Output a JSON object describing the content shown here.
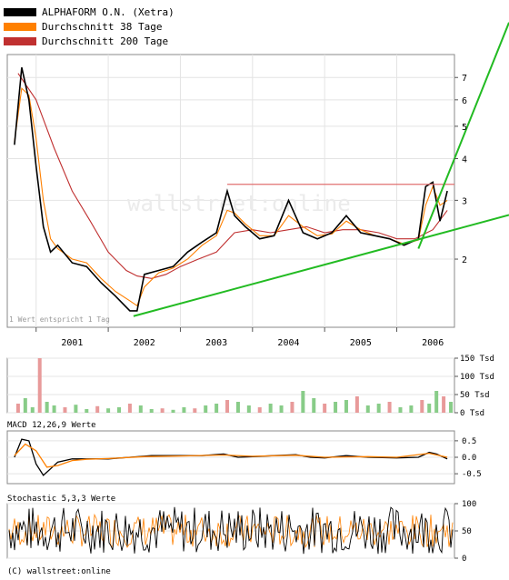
{
  "chart_data": [
    {
      "type": "line",
      "panel": "price",
      "legend": [
        {
          "name": "ALPHAFORM O.N. (Xetra)",
          "color": "#000000"
        },
        {
          "name": "Durchschnitt 38 Tage",
          "color": "#ff8000"
        },
        {
          "name": "Durchschnitt 200 Tage",
          "color": "#c03030"
        }
      ],
      "legend_placement": "top-left",
      "x_ticks": [
        "2001",
        "2002",
        "2003",
        "2004",
        "2005",
        "2006"
      ],
      "y_ticks": [
        2,
        3,
        4,
        5,
        6,
        7
      ],
      "y_scale": "log",
      "ylim": [
        1.25,
        8.2
      ],
      "grid": true,
      "note": "1 Wert entspricht 1 Tag",
      "watermark": "wallstreet:online",
      "series": [
        {
          "name": "ALPHAFORM O.N. (Xetra)",
          "x": [
            2000.7,
            2000.8,
            2000.9,
            2001.0,
            2001.1,
            2001.2,
            2001.3,
            2001.5,
            2001.7,
            2001.9,
            2002.1,
            2002.3,
            2002.4,
            2002.5,
            2002.7,
            2002.9,
            2003.1,
            2003.3,
            2003.5,
            2003.65,
            2003.75,
            2003.9,
            2004.1,
            2004.3,
            2004.5,
            2004.7,
            2004.9,
            2005.1,
            2005.3,
            2005.5,
            2005.7,
            2005.9,
            2006.1,
            2006.3,
            2006.4,
            2006.5,
            2006.6,
            2006.7
          ],
          "values": [
            4.4,
            7.5,
            6.0,
            3.8,
            2.5,
            2.1,
            2.2,
            1.95,
            1.9,
            1.7,
            1.55,
            1.4,
            1.4,
            1.8,
            1.85,
            1.9,
            2.1,
            2.25,
            2.4,
            3.2,
            2.7,
            2.5,
            2.3,
            2.35,
            3.0,
            2.4,
            2.3,
            2.4,
            2.7,
            2.4,
            2.35,
            2.3,
            2.2,
            2.3,
            3.3,
            3.4,
            2.6,
            3.2
          ]
        },
        {
          "name": "Durchschnitt 38 Tage",
          "x": [
            2000.7,
            2000.8,
            2000.9,
            2001.0,
            2001.1,
            2001.2,
            2001.3,
            2001.5,
            2001.7,
            2001.9,
            2002.1,
            2002.3,
            2002.4,
            2002.5,
            2002.7,
            2002.9,
            2003.1,
            2003.3,
            2003.5,
            2003.65,
            2003.75,
            2003.9,
            2004.1,
            2004.3,
            2004.5,
            2004.7,
            2004.9,
            2005.1,
            2005.3,
            2005.5,
            2005.7,
            2005.9,
            2006.1,
            2006.3,
            2006.4,
            2006.5,
            2006.6,
            2006.7
          ],
          "values": [
            4.5,
            6.5,
            6.2,
            4.6,
            3.0,
            2.3,
            2.15,
            2.0,
            1.95,
            1.75,
            1.6,
            1.5,
            1.45,
            1.65,
            1.82,
            1.88,
            2.0,
            2.2,
            2.35,
            2.8,
            2.75,
            2.55,
            2.35,
            2.35,
            2.7,
            2.5,
            2.35,
            2.38,
            2.6,
            2.45,
            2.35,
            2.3,
            2.22,
            2.28,
            2.9,
            3.3,
            2.9,
            3.0
          ]
        },
        {
          "name": "Durchschnitt 200 Tage",
          "x": [
            2000.75,
            2001.0,
            2001.25,
            2001.5,
            2001.75,
            2002.0,
            2002.25,
            2002.4,
            2002.6,
            2002.8,
            2003.0,
            2003.25,
            2003.5,
            2003.75,
            2004.0,
            2004.25,
            2004.5,
            2004.75,
            2005.0,
            2005.25,
            2005.5,
            2005.75,
            2006.0,
            2006.25,
            2006.5,
            2006.7
          ],
          "values": [
            7.2,
            6.0,
            4.3,
            3.2,
            2.6,
            2.1,
            1.85,
            1.78,
            1.75,
            1.8,
            1.9,
            2.0,
            2.1,
            2.4,
            2.45,
            2.4,
            2.45,
            2.5,
            2.4,
            2.45,
            2.45,
            2.4,
            2.3,
            2.3,
            2.45,
            2.8
          ]
        }
      ],
      "annotations": [
        {
          "kind": "horizontal-line",
          "y": 3.35,
          "x_from": 2003.65,
          "x_to": 2006.8,
          "color": "#e07070"
        },
        {
          "kind": "trendline",
          "from": {
            "x": 2002.35,
            "y": 1.35
          },
          "to": {
            "x": 2006.8,
            "y": 2.45
          },
          "color": "#22bb22"
        },
        {
          "kind": "trendline",
          "from": {
            "x": 2006.3,
            "y": 2.15
          },
          "to": {
            "x": 2006.8,
            "y": 4.0
          },
          "color": "#22bb22"
        }
      ]
    },
    {
      "type": "bar",
      "panel": "volume",
      "y_ticks": [
        0,
        50,
        100,
        150
      ],
      "y_unit": "Tsd",
      "ylim": [
        0,
        150
      ],
      "x": [
        2000.75,
        2000.85,
        2000.95,
        2001.05,
        2001.15,
        2001.25,
        2001.4,
        2001.55,
        2001.7,
        2001.85,
        2002.0,
        2002.15,
        2002.3,
        2002.45,
        2002.6,
        2002.75,
        2002.9,
        2003.05,
        2003.2,
        2003.35,
        2003.5,
        2003.65,
        2003.8,
        2003.95,
        2004.1,
        2004.25,
        2004.4,
        2004.55,
        2004.7,
        2004.85,
        2005.0,
        2005.15,
        2005.3,
        2005.45,
        2005.6,
        2005.75,
        2005.9,
        2006.05,
        2006.2,
        2006.35,
        2006.45,
        2006.55,
        2006.65,
        2006.75
      ],
      "values": [
        25,
        40,
        15,
        150,
        30,
        20,
        15,
        22,
        10,
        18,
        12,
        15,
        25,
        20,
        10,
        12,
        8,
        15,
        12,
        20,
        25,
        35,
        30,
        20,
        15,
        25,
        20,
        30,
        60,
        40,
        25,
        30,
        35,
        45,
        20,
        25,
        30,
        15,
        20,
        35,
        25,
        60,
        45,
        30
      ]
    },
    {
      "type": "line",
      "panel": "macd",
      "title": "MACD 12,26,9 Werte",
      "y_ticks": [
        0.5,
        0.0,
        -0.5
      ],
      "ylim": [
        -0.8,
        0.8
      ],
      "series": [
        {
          "name": "MACD",
          "x": [
            2000.7,
            2000.8,
            2000.9,
            2001.0,
            2001.1,
            2001.2,
            2001.3,
            2001.5,
            2001.7,
            2002.0,
            2002.3,
            2002.6,
            2003.0,
            2003.3,
            2003.6,
            2003.8,
            2004.0,
            2004.3,
            2004.6,
            2004.8,
            2005.0,
            2005.3,
            2005.6,
            2006.0,
            2006.3,
            2006.45,
            2006.55,
            2006.7
          ],
          "values": [
            0.0,
            0.55,
            0.5,
            -0.2,
            -0.55,
            -0.35,
            -0.15,
            -0.05,
            -0.05,
            -0.05,
            0.0,
            0.05,
            0.05,
            0.05,
            0.1,
            0.0,
            0.02,
            0.05,
            0.08,
            0.0,
            -0.02,
            0.05,
            0.0,
            -0.02,
            0.0,
            0.15,
            0.1,
            -0.05
          ]
        },
        {
          "name": "Signal",
          "x": [
            2000.7,
            2000.85,
            2001.0,
            2001.15,
            2001.3,
            2001.5,
            2001.7,
            2002.0,
            2002.5,
            2003.0,
            2003.6,
            2004.0,
            2004.6,
            2005.0,
            2005.6,
            2006.0,
            2006.45,
            2006.7
          ],
          "values": [
            0.05,
            0.4,
            0.2,
            -0.3,
            -0.25,
            -0.1,
            -0.06,
            -0.04,
            0.02,
            0.04,
            0.07,
            0.03,
            0.06,
            0.0,
            0.02,
            0.0,
            0.12,
            0.0
          ]
        }
      ]
    },
    {
      "type": "line",
      "panel": "stochastic",
      "title": "Stochastic 5,3,3 Werte",
      "y_ticks": [
        0,
        50,
        100
      ],
      "ylim": [
        0,
        100
      ]
    }
  ],
  "footer": "(C) wallstreet:online"
}
